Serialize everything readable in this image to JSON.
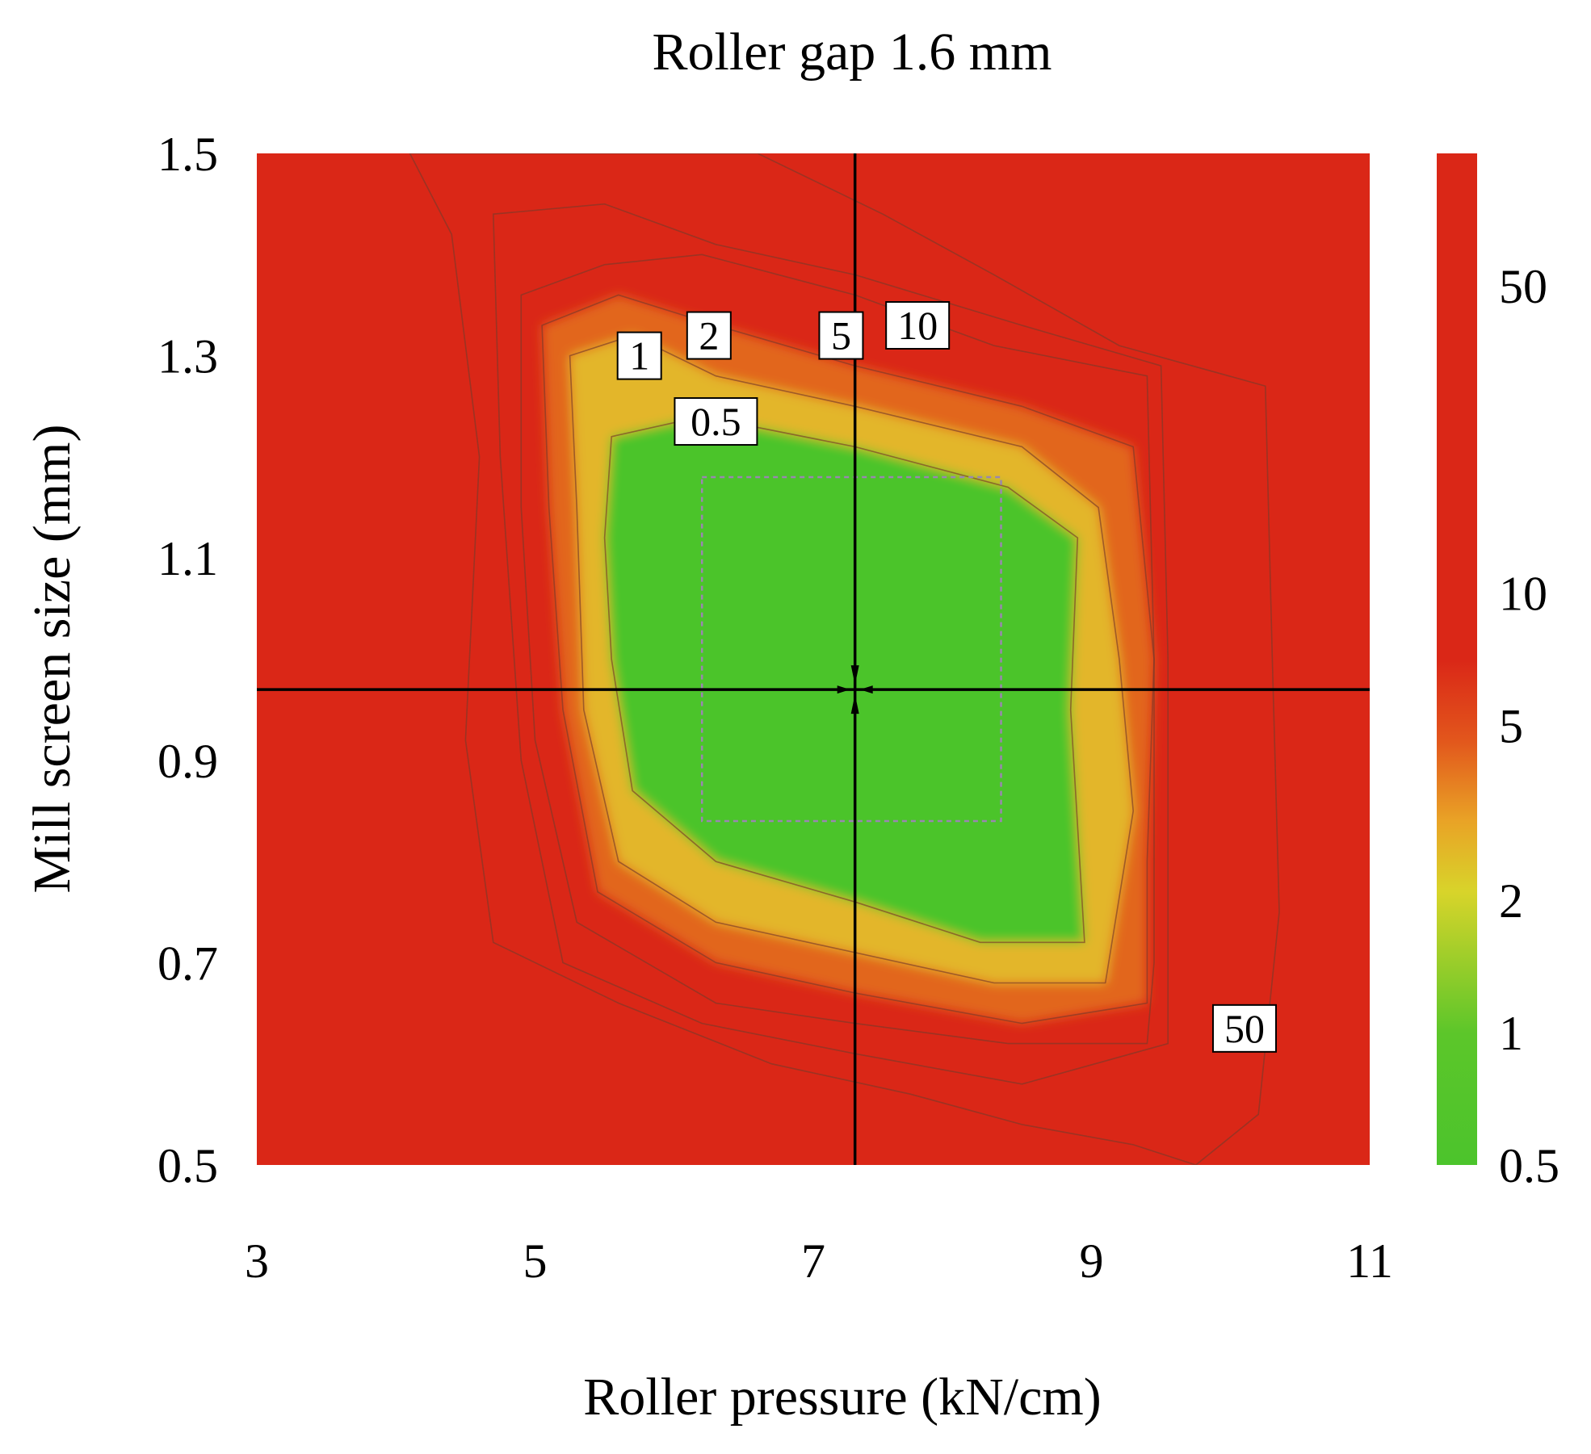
{
  "chart_data": {
    "type": "heatmap",
    "title": "Roller gap 1.6 mm",
    "xlabel": "Roller pressure (kN/cm)",
    "ylabel": "Mill screen size (mm)",
    "xlim": [
      3,
      11
    ],
    "ylim": [
      0.5,
      1.5
    ],
    "x_ticks": [
      "3",
      "5",
      "7",
      "9",
      "11"
    ],
    "y_ticks": [
      "0.5",
      "0.7",
      "0.9",
      "1.1",
      "1.3",
      "1.5"
    ],
    "colorbar": {
      "scale": "log",
      "range": [
        0.5,
        100
      ],
      "tick_labels": [
        "0.5",
        "1",
        "2",
        "5",
        "10",
        "50"
      ],
      "tick_values": [
        0.5,
        1,
        2,
        5,
        10,
        50
      ],
      "colors": {
        "low": "#4cc42c",
        "mid": "#d8d42a",
        "orange": "#e78a25",
        "high": "#da2717"
      }
    },
    "contours": [
      {
        "label": "0.5",
        "level": 0.5,
        "points": [
          [
            5.55,
            1.22
          ],
          [
            6.2,
            1.24
          ],
          [
            7.3,
            1.21
          ],
          [
            8.4,
            1.17
          ],
          [
            8.9,
            1.12
          ],
          [
            8.85,
            0.95
          ],
          [
            8.95,
            0.72
          ],
          [
            8.2,
            0.72
          ],
          [
            7.3,
            0.76
          ],
          [
            6.3,
            0.8
          ],
          [
            5.7,
            0.87
          ],
          [
            5.55,
            1.0
          ],
          [
            5.5,
            1.12
          ]
        ]
      },
      {
        "label": "1",
        "level": 1,
        "points": [
          [
            5.25,
            1.3
          ],
          [
            5.7,
            1.32
          ],
          [
            6.3,
            1.28
          ],
          [
            7.3,
            1.25
          ],
          [
            8.5,
            1.21
          ],
          [
            9.05,
            1.15
          ],
          [
            9.2,
            1.0
          ],
          [
            9.3,
            0.85
          ],
          [
            9.1,
            0.68
          ],
          [
            8.3,
            0.68
          ],
          [
            7.3,
            0.71
          ],
          [
            6.3,
            0.74
          ],
          [
            5.6,
            0.8
          ],
          [
            5.35,
            0.95
          ],
          [
            5.3,
            1.15
          ]
        ]
      },
      {
        "label": "2",
        "level": 2,
        "points": [
          [
            5.05,
            1.33
          ],
          [
            5.6,
            1.36
          ],
          [
            6.3,
            1.33
          ],
          [
            7.3,
            1.29
          ],
          [
            8.5,
            1.25
          ],
          [
            9.3,
            1.21
          ],
          [
            9.45,
            1.0
          ],
          [
            9.4,
            0.8
          ],
          [
            9.4,
            0.66
          ],
          [
            8.5,
            0.64
          ],
          [
            7.3,
            0.67
          ],
          [
            6.3,
            0.7
          ],
          [
            5.45,
            0.77
          ],
          [
            5.2,
            0.95
          ],
          [
            5.1,
            1.15
          ]
        ]
      },
      {
        "label": "5",
        "level": 5,
        "points": [
          [
            4.9,
            1.36
          ],
          [
            5.5,
            1.39
          ],
          [
            6.2,
            1.4
          ],
          [
            7.3,
            1.36
          ],
          [
            8.3,
            1.31
          ],
          [
            9.4,
            1.28
          ],
          [
            9.45,
            1.0
          ],
          [
            9.45,
            0.7
          ],
          [
            9.4,
            0.62
          ],
          [
            8.4,
            0.62
          ],
          [
            7.3,
            0.64
          ],
          [
            6.3,
            0.66
          ],
          [
            5.3,
            0.74
          ],
          [
            5.0,
            0.92
          ],
          [
            4.9,
            1.15
          ]
        ]
      },
      {
        "label": "10",
        "level": 10,
        "points": [
          [
            4.7,
            1.44
          ],
          [
            5.5,
            1.45
          ],
          [
            6.3,
            1.41
          ],
          [
            7.3,
            1.38
          ],
          [
            8.5,
            1.33
          ],
          [
            9.5,
            1.29
          ],
          [
            9.55,
            1.0
          ],
          [
            9.55,
            0.62
          ],
          [
            8.5,
            0.58
          ],
          [
            7.3,
            0.61
          ],
          [
            6.2,
            0.64
          ],
          [
            5.2,
            0.7
          ],
          [
            4.9,
            0.9
          ],
          [
            4.75,
            1.2
          ]
        ]
      },
      {
        "label": "50",
        "level": 50,
        "points": [
          [
            4.1,
            1.5
          ],
          [
            4.4,
            1.42
          ],
          [
            4.6,
            1.2
          ],
          [
            4.5,
            0.92
          ],
          [
            4.7,
            0.72
          ],
          [
            5.6,
            0.66
          ],
          [
            6.7,
            0.6
          ],
          [
            7.7,
            0.57
          ],
          [
            8.5,
            0.54
          ],
          [
            9.3,
            0.52
          ],
          [
            9.75,
            0.5
          ],
          [
            10.2,
            0.55
          ],
          [
            10.35,
            0.75
          ],
          [
            10.3,
            1.0
          ],
          [
            10.25,
            1.27
          ],
          [
            9.2,
            1.31
          ],
          [
            8.3,
            1.38
          ],
          [
            7.5,
            1.44
          ],
          [
            6.6,
            1.5
          ]
        ]
      }
    ],
    "contour_labels": [
      {
        "text": "1",
        "x": 5.75,
        "y": 1.3
      },
      {
        "text": "2",
        "x": 6.25,
        "y": 1.32
      },
      {
        "text": "5",
        "x": 7.2,
        "y": 1.32
      },
      {
        "text": "10",
        "x": 7.75,
        "y": 1.33
      },
      {
        "text": "0.5",
        "x": 6.3,
        "y": 1.235
      },
      {
        "text": "50",
        "x": 10.1,
        "y": 0.635
      }
    ],
    "crosshair": {
      "x": 7.3,
      "y": 0.97
    },
    "dashed_box": {
      "x": [
        6.2,
        8.35
      ],
      "y": [
        0.84,
        1.18
      ]
    }
  }
}
